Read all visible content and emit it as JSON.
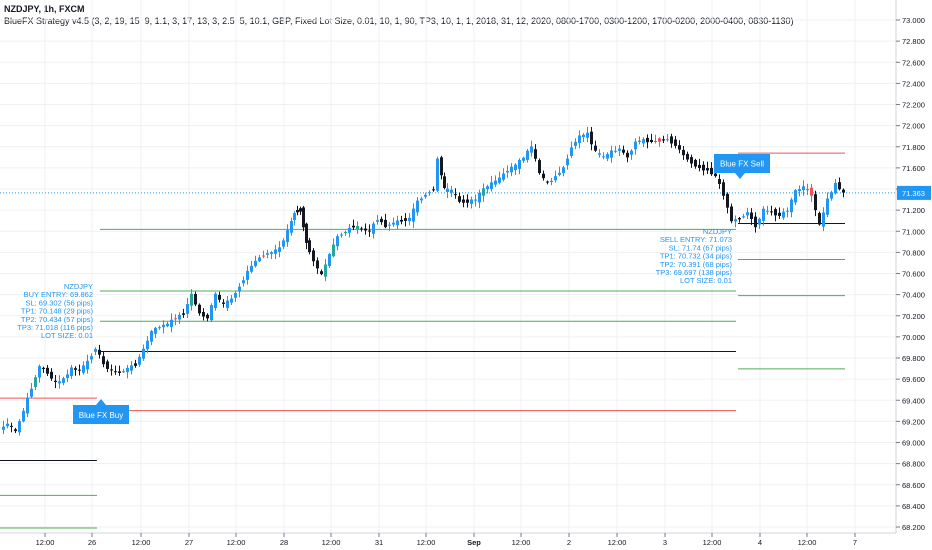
{
  "header": {
    "symbol_line": "NZDJPY, 1h, FXCM",
    "strategy_line": "BlueFX Strategy v4.5 (3, 2, 19, 15, 9, 1.1, 3, 17, 13, 3, 2.5, 5, 10.1, GBP, Fixed Lot Size, 0.01, 10, 1, 90, TP3, 10, 1, 1, 2018, 31, 12, 2020, 0800-1700, 0300-1200, 1700-0200, 2000-0400, 0830-1130)"
  },
  "colors": {
    "up": "#2196f3",
    "down": "#131722",
    "up_alt": "#26a69a",
    "down_alt": "#ef5350",
    "tp_line": "#4caf50",
    "sl_line": "#ef5350",
    "entry_line": "#131722",
    "accent": "#2196f3",
    "grid": "#eef0f4"
  },
  "chart_data": {
    "type": "candlestick",
    "symbol": "NZDJPY",
    "timeframe": "1h",
    "ylim": [
      68.18,
      73.08
    ],
    "x_range": [
      0,
      932
    ],
    "y_ticks": [
      "68.200",
      "68.400",
      "68.600",
      "68.800",
      "69.000",
      "69.200",
      "69.400",
      "69.600",
      "69.800",
      "70.000",
      "70.200",
      "70.400",
      "70.600",
      "70.800",
      "71.000",
      "71.200",
      "71.400",
      "71.600",
      "71.800",
      "72.000",
      "72.200",
      "72.400",
      "72.600",
      "72.800",
      "73.000"
    ],
    "x_ticks": [
      {
        "label": "12:00",
        "x": 45
      },
      {
        "label": "26",
        "x": 92
      },
      {
        "label": "12:00",
        "x": 141
      },
      {
        "label": "27",
        "x": 189
      },
      {
        "label": "12:00",
        "x": 236
      },
      {
        "label": "28",
        "x": 284
      },
      {
        "label": "12:00",
        "x": 331
      },
      {
        "label": "31",
        "x": 379
      },
      {
        "label": "12:00",
        "x": 426
      },
      {
        "label": "Sep",
        "x": 474
      },
      {
        "label": "12:00",
        "x": 521
      },
      {
        "label": "2",
        "x": 569
      },
      {
        "label": "12:00",
        "x": 617
      },
      {
        "label": "3",
        "x": 665
      },
      {
        "label": "12:00",
        "x": 712
      },
      {
        "label": "4",
        "x": 760
      },
      {
        "label": "12:00",
        "x": 807
      },
      {
        "label": "7",
        "x": 855
      }
    ],
    "price_label": {
      "value": 71.363,
      "text": "71.363"
    },
    "close_path": [
      [
        2,
        69.12
      ],
      [
        10,
        69.18
      ],
      [
        18,
        69.1
      ],
      [
        26,
        69.3
      ],
      [
        34,
        69.52
      ],
      [
        42,
        69.72
      ],
      [
        50,
        69.66
      ],
      [
        58,
        69.56
      ],
      [
        66,
        69.6
      ],
      [
        74,
        69.7
      ],
      [
        82,
        69.68
      ],
      [
        90,
        69.76
      ],
      [
        98,
        69.9
      ],
      [
        106,
        69.74
      ],
      [
        114,
        69.68
      ],
      [
        122,
        69.66
      ],
      [
        130,
        69.7
      ],
      [
        138,
        69.74
      ],
      [
        146,
        69.88
      ],
      [
        154,
        70.05
      ],
      [
        162,
        70.1
      ],
      [
        170,
        70.12
      ],
      [
        178,
        70.18
      ],
      [
        186,
        70.22
      ],
      [
        194,
        70.4
      ],
      [
        202,
        70.22
      ],
      [
        210,
        70.18
      ],
      [
        218,
        70.4
      ],
      [
        226,
        70.3
      ],
      [
        234,
        70.36
      ],
      [
        242,
        70.48
      ],
      [
        250,
        70.62
      ],
      [
        258,
        70.72
      ],
      [
        266,
        70.78
      ],
      [
        274,
        70.8
      ],
      [
        282,
        70.84
      ],
      [
        290,
        71.0
      ],
      [
        296,
        71.18
      ],
      [
        302,
        71.2
      ],
      [
        308,
        70.9
      ],
      [
        316,
        70.72
      ],
      [
        324,
        70.58
      ],
      [
        332,
        70.78
      ],
      [
        340,
        70.95
      ],
      [
        348,
        71.0
      ],
      [
        356,
        71.05
      ],
      [
        364,
        71.02
      ],
      [
        372,
        71.0
      ],
      [
        380,
        71.12
      ],
      [
        388,
        71.05
      ],
      [
        396,
        71.08
      ],
      [
        404,
        71.1
      ],
      [
        412,
        71.12
      ],
      [
        420,
        71.28
      ],
      [
        428,
        71.35
      ],
      [
        436,
        71.4
      ],
      [
        440,
        71.68
      ],
      [
        446,
        71.4
      ],
      [
        454,
        71.38
      ],
      [
        462,
        71.28
      ],
      [
        470,
        71.28
      ],
      [
        478,
        71.3
      ],
      [
        486,
        71.4
      ],
      [
        494,
        71.45
      ],
      [
        502,
        71.5
      ],
      [
        510,
        71.58
      ],
      [
        518,
        71.62
      ],
      [
        526,
        71.7
      ],
      [
        534,
        71.8
      ],
      [
        542,
        71.55
      ],
      [
        550,
        71.45
      ],
      [
        558,
        71.52
      ],
      [
        566,
        71.6
      ],
      [
        574,
        71.8
      ],
      [
        582,
        71.9
      ],
      [
        590,
        71.92
      ],
      [
        598,
        71.75
      ],
      [
        606,
        71.7
      ],
      [
        614,
        71.75
      ],
      [
        622,
        71.78
      ],
      [
        630,
        71.7
      ],
      [
        638,
        71.85
      ],
      [
        646,
        71.86
      ],
      [
        654,
        71.85
      ],
      [
        662,
        71.86
      ],
      [
        670,
        71.87
      ],
      [
        678,
        71.82
      ],
      [
        686,
        71.72
      ],
      [
        694,
        71.65
      ],
      [
        702,
        71.6
      ],
      [
        710,
        71.58
      ],
      [
        718,
        71.52
      ],
      [
        726,
        71.35
      ],
      [
        734,
        71.1
      ],
      [
        742,
        71.12
      ],
      [
        750,
        71.18
      ],
      [
        758,
        71.05
      ],
      [
        766,
        71.2
      ],
      [
        774,
        71.18
      ],
      [
        782,
        71.15
      ],
      [
        790,
        71.2
      ],
      [
        798,
        71.38
      ],
      [
        806,
        71.42
      ],
      [
        814,
        71.35
      ],
      [
        822,
        71.05
      ],
      [
        830,
        71.3
      ],
      [
        838,
        71.45
      ],
      [
        846,
        71.36
      ]
    ],
    "trades": [
      {
        "side": "buy",
        "signal_label": "Blue FX Buy",
        "info": [
          "NZDJPY",
          "BUY ENTRY: 69.862",
          "SL: 69.302 (56 pips)",
          "TP1: 70.148 (29 pips)",
          "TP2: 70.434 (57 pips)",
          "TP3: 71.018 (116 pips)",
          "LOT SIZE: 0.01"
        ],
        "entry": 69.862,
        "sl": 69.302,
        "tp1": 70.148,
        "tp2": 70.434,
        "tp3": 71.018,
        "x_start": 100,
        "x_end": 736,
        "signal_x": 101
      },
      {
        "side": "sell",
        "signal_label": "Blue FX Sell",
        "info": [
          "NZDJPY",
          "SELL ENTRY: 71.073",
          "SL: 71.74 (67 pips)",
          "TP1: 70.732 (34 pips)",
          "TP2: 70.391 (68 pips)",
          "TP3: 69.697 (138 pips)",
          "LOT SIZE: 0.01"
        ],
        "entry": 71.073,
        "sl": 71.74,
        "tp1": 70.732,
        "tp2": 70.391,
        "tp3": 69.697,
        "x_start": 738,
        "x_end": 845,
        "signal_x": 740
      }
    ],
    "prior_trade_lines": [
      {
        "price": 69.42,
        "kind": "sl"
      },
      {
        "price": 68.83,
        "kind": "entry"
      },
      {
        "price": 68.5,
        "kind": "tp"
      },
      {
        "price": 68.19,
        "kind": "tp"
      }
    ]
  }
}
